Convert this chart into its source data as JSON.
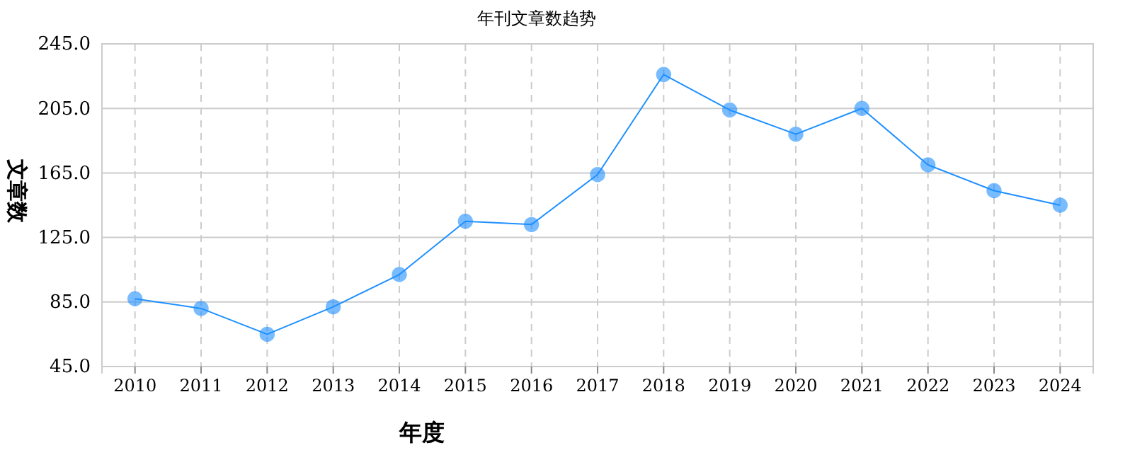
{
  "chart_data": {
    "type": "line",
    "title": "年刊文章数趋势",
    "xlabel": "年度",
    "ylabel": "文章数",
    "categories": [
      "2010",
      "2011",
      "2012",
      "2013",
      "2014",
      "2015",
      "2016",
      "2017",
      "2018",
      "2019",
      "2020",
      "2021",
      "2022",
      "2023",
      "2024"
    ],
    "series": [
      {
        "color": "#1e90ff",
        "values": [
          87,
          81,
          65,
          82,
          102,
          135,
          133,
          164,
          226,
          204,
          189,
          205,
          170,
          154,
          145
        ]
      }
    ],
    "ylim": [
      45,
      245
    ],
    "yticks": [
      {
        "value": 45,
        "label": "45.0"
      },
      {
        "value": 85,
        "label": "85.0"
      },
      {
        "value": 125,
        "label": "125.0"
      },
      {
        "value": 165,
        "label": "165.0"
      },
      {
        "value": 205,
        "label": "205.0"
      },
      {
        "value": 245,
        "label": "245.0"
      }
    ],
    "grid": true,
    "marker": "circle",
    "line_style": "solid"
  }
}
